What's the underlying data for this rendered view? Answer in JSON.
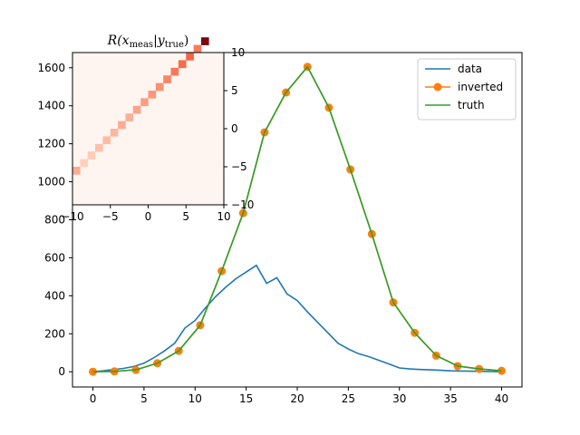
{
  "chart_data": [
    {
      "type": "line",
      "title": "",
      "xlabel": "",
      "ylabel": "",
      "xlim": [
        -2,
        42
      ],
      "ylim": [
        -80,
        1680
      ],
      "x_ticks": [
        0,
        5,
        10,
        15,
        20,
        25,
        30,
        35,
        40
      ],
      "y_ticks": [
        0,
        200,
        400,
        600,
        800,
        1000,
        1200,
        1400,
        1600
      ],
      "legend": "top-right",
      "grid": false,
      "series": [
        {
          "name": "data",
          "color": "#1f77b4",
          "marker": "none",
          "x": [
            0,
            1,
            2,
            3,
            4,
            5,
            6,
            7,
            8,
            9,
            10,
            11,
            12,
            13,
            14,
            15,
            16,
            17,
            18,
            19,
            20,
            21,
            22,
            23,
            24,
            25,
            26,
            27,
            28,
            29,
            30,
            31,
            32,
            33,
            34,
            35,
            36,
            37,
            38,
            39,
            40
          ],
          "y": [
            0,
            5,
            12,
            18,
            28,
            45,
            75,
            110,
            150,
            230,
            270,
            335,
            395,
            445,
            490,
            525,
            560,
            465,
            495,
            410,
            375,
            315,
            260,
            205,
            150,
            120,
            95,
            80,
            60,
            40,
            20,
            15,
            12,
            10,
            8,
            5,
            4,
            3,
            2,
            1,
            0
          ]
        },
        {
          "name": "inverted",
          "color": "#ff7f0e",
          "marker": "circle",
          "x": [
            0,
            2.1,
            4.2,
            6.3,
            8.4,
            10.5,
            12.6,
            14.7,
            16.8,
            18.9,
            21,
            23.1,
            25.2,
            27.3,
            29.4,
            31.5,
            33.6,
            35.7,
            37.8,
            40
          ],
          "y": [
            0,
            2,
            10,
            45,
            110,
            245,
            530,
            835,
            1260,
            1470,
            1605,
            1390,
            1065,
            725,
            365,
            205,
            85,
            30,
            15,
            5
          ]
        },
        {
          "name": "truth",
          "color": "#2ca02c",
          "marker": "none",
          "x": [
            0,
            2.1,
            4.2,
            6.3,
            8.4,
            10.5,
            12.6,
            14.7,
            16.8,
            18.9,
            21,
            23.1,
            25.2,
            27.3,
            29.4,
            31.5,
            33.6,
            35.7,
            37.8,
            40
          ],
          "y": [
            0,
            2,
            10,
            45,
            110,
            245,
            530,
            835,
            1260,
            1470,
            1605,
            1390,
            1065,
            725,
            365,
            205,
            85,
            30,
            15,
            5
          ]
        }
      ]
    },
    {
      "type": "heatmap",
      "title": "R(x_meas|y_true)",
      "title_parts": {
        "main": "R(x",
        "sub1": "meas",
        "mid": "|y",
        "sub2": "true",
        "end": ")"
      },
      "xlim": [
        -10,
        10
      ],
      "ylim": [
        -10,
        10
      ],
      "x_ticks": [
        -10,
        -5,
        0,
        5,
        10
      ],
      "y_ticks": [
        -10,
        -5,
        0,
        5,
        10
      ],
      "colormap": "Reds",
      "cells": [
        {
          "x": -10,
          "y": -6,
          "v": 0.3
        },
        {
          "x": -9,
          "y": -5,
          "v": 0.16
        },
        {
          "x": -8,
          "y": -4,
          "v": 0.18
        },
        {
          "x": -7,
          "y": -3,
          "v": 0.22
        },
        {
          "x": -6,
          "y": -2,
          "v": 0.24
        },
        {
          "x": -5,
          "y": -1,
          "v": 0.26
        },
        {
          "x": -4,
          "y": 0,
          "v": 0.3
        },
        {
          "x": -3,
          "y": 1,
          "v": 0.28
        },
        {
          "x": -2,
          "y": 2,
          "v": 0.32
        },
        {
          "x": -1,
          "y": 3,
          "v": 0.34
        },
        {
          "x": 0,
          "y": 4,
          "v": 0.36
        },
        {
          "x": 1,
          "y": 5,
          "v": 0.38
        },
        {
          "x": 2,
          "y": 6,
          "v": 0.42
        },
        {
          "x": 3,
          "y": 7,
          "v": 0.46
        },
        {
          "x": 4,
          "y": 8,
          "v": 0.5
        },
        {
          "x": 5,
          "y": 9,
          "v": 0.52
        },
        {
          "x": 6,
          "y": 10,
          "v": 0.45
        },
        {
          "x": 7,
          "y": 11,
          "v": 0.95
        }
      ]
    }
  ]
}
